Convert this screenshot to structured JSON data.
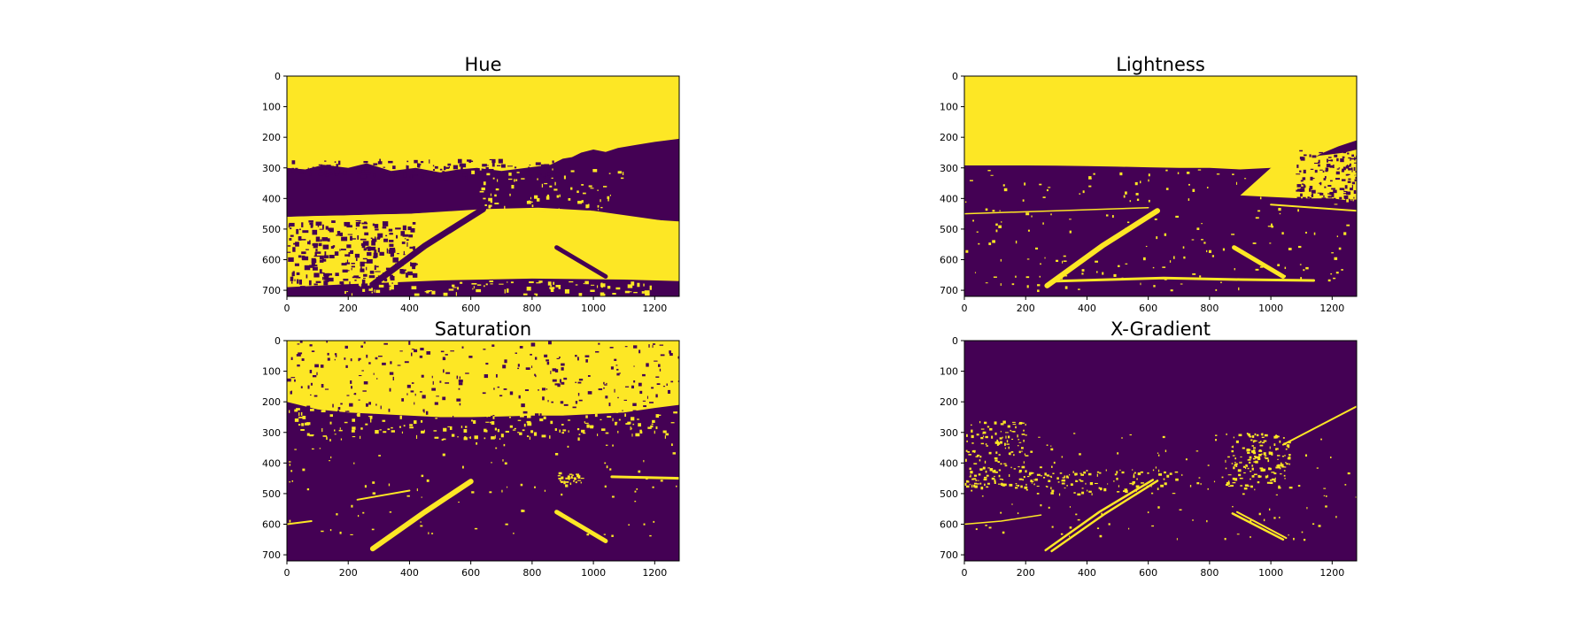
{
  "colors": {
    "low": "#440154",
    "high": "#fde725",
    "axis": "#000000",
    "background": "#ffffff"
  },
  "chart_data": [
    {
      "type": "heatmap",
      "title": "Hue",
      "colormap": "viridis",
      "xlim": [
        0,
        1280
      ],
      "ylim": [
        720,
        0
      ],
      "xticks": [
        0,
        200,
        400,
        600,
        800,
        1000,
        1200
      ],
      "yticks": [
        0,
        100,
        200,
        300,
        400,
        500,
        600,
        700
      ],
      "grid": false,
      "legend": "none"
    },
    {
      "type": "heatmap",
      "title": "Lightness",
      "colormap": "viridis",
      "xlim": [
        0,
        1280
      ],
      "ylim": [
        720,
        0
      ],
      "xticks": [
        0,
        200,
        400,
        600,
        800,
        1000,
        1200
      ],
      "yticks": [
        0,
        100,
        200,
        300,
        400,
        500,
        600,
        700
      ],
      "grid": false,
      "legend": "none"
    },
    {
      "type": "heatmap",
      "title": "Saturation",
      "colormap": "viridis",
      "xlim": [
        0,
        1280
      ],
      "ylim": [
        720,
        0
      ],
      "xticks": [
        0,
        200,
        400,
        600,
        800,
        1000,
        1200
      ],
      "yticks": [
        0,
        100,
        200,
        300,
        400,
        500,
        600,
        700
      ],
      "grid": false,
      "legend": "none"
    },
    {
      "type": "heatmap",
      "title": "X-Gradient",
      "colormap": "viridis",
      "xlim": [
        0,
        1280
      ],
      "ylim": [
        720,
        0
      ],
      "xticks": [
        0,
        200,
        400,
        600,
        800,
        1000,
        1200
      ],
      "yticks": [
        0,
        100,
        200,
        300,
        400,
        500,
        600,
        700
      ],
      "grid": false,
      "legend": "none"
    }
  ]
}
